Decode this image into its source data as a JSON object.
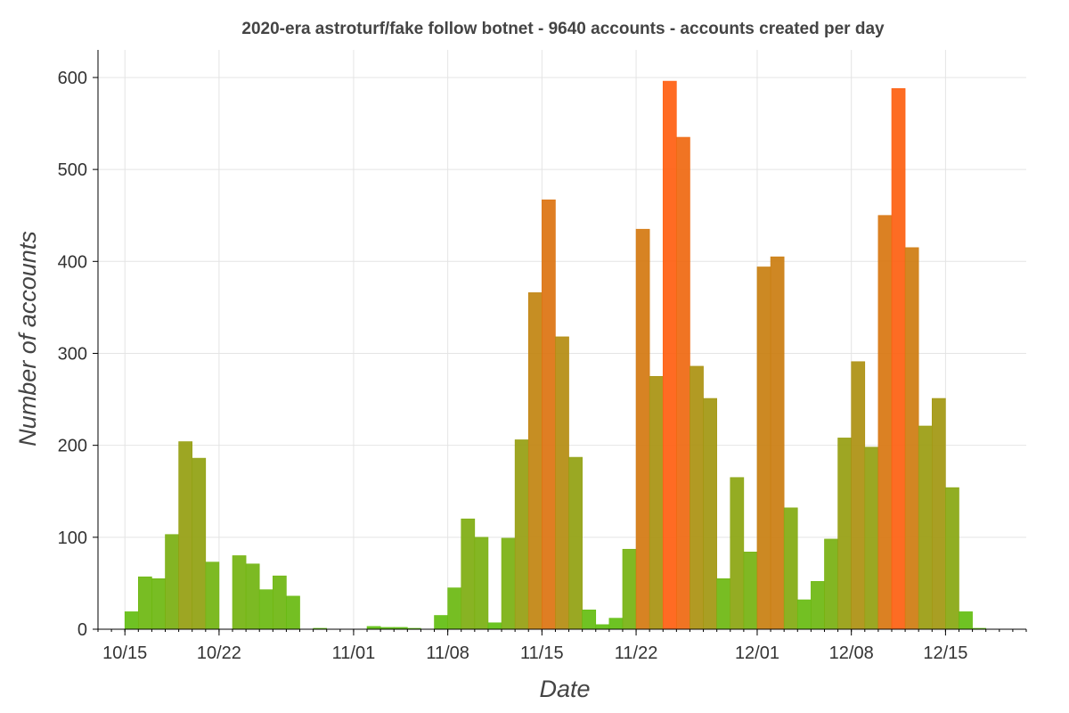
{
  "chart_data": {
    "type": "bar",
    "title": "2020-era astroturf/fake follow botnet - 9640 accounts - accounts created per day",
    "xlabel": "Date",
    "ylabel": "Number of accounts",
    "x_start": "2020-10-15",
    "x_ticks": [
      {
        "date": "2020-10-15",
        "label": "10/15"
      },
      {
        "date": "2020-10-22",
        "label": "10/22"
      },
      {
        "date": "2020-11-01",
        "label": "11/01"
      },
      {
        "date": "2020-11-08",
        "label": "11/08"
      },
      {
        "date": "2020-11-15",
        "label": "11/15"
      },
      {
        "date": "2020-11-22",
        "label": "11/22"
      },
      {
        "date": "2020-12-01",
        "label": "12/01"
      },
      {
        "date": "2020-12-08",
        "label": "12/08"
      },
      {
        "date": "2020-12-15",
        "label": "12/15"
      }
    ],
    "y_ticks": [
      0,
      100,
      200,
      300,
      400,
      500,
      600
    ],
    "xlim": [
      "2020-10-13",
      "2020-12-21"
    ],
    "ylim": [
      0,
      630
    ],
    "grid": true,
    "color_low": "#5ec010",
    "color_high": "#ff5e10",
    "series": [
      {
        "values": [
          19,
          57,
          55,
          103,
          204,
          186,
          73,
          0,
          80,
          71,
          43,
          58,
          36,
          0,
          1,
          0,
          0,
          0,
          3,
          2,
          2,
          1,
          0,
          15,
          45,
          120,
          100,
          7,
          99,
          206,
          366,
          467,
          318,
          187,
          21,
          5,
          12,
          87,
          435,
          275,
          596,
          535,
          286,
          251,
          55,
          165,
          84,
          394,
          405,
          132,
          32,
          52,
          98,
          208,
          291,
          198,
          450,
          588,
          415,
          221,
          251,
          154,
          19,
          1
        ]
      }
    ]
  }
}
